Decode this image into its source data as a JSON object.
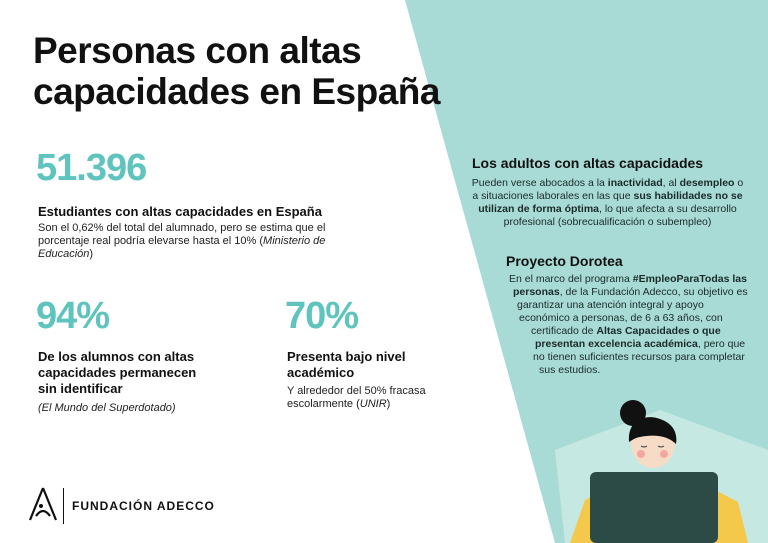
{
  "title_line1": "Personas con altas",
  "title_line2": "capacidades en España",
  "stat1": {
    "value": "51.396",
    "label": "Estudiantes con altas capacidades en España",
    "note_line1": "Son el 0,62% del total del alumnado, pero se estima que el",
    "note_line2": "porcentaje real podría elevarse hasta el 10% (",
    "note_source": "Ministerio de",
    "note_source2": "Educación",
    "note_end": ")"
  },
  "stat2": {
    "value": "94%",
    "label_line1": "De los alumnos con altas",
    "label_line2": "capacidades permanecen",
    "label_line3": "sin identificar",
    "source": "(El Mundo del Superdotado)"
  },
  "stat3": {
    "value": "70%",
    "label_line1": "Presenta bajo nivel",
    "label_line2": "académico",
    "note_line1": "Y alrededor del 50% fracasa",
    "note_line2": "escolarmente (",
    "note_source": "UNIR",
    "note_end": ")"
  },
  "adults": {
    "heading": "Los adultos con altas capacidades",
    "l1a": "Pueden verse abocados a la ",
    "l1b": "inactividad",
    "l1c": ", al ",
    "l1d": "desempleo",
    "l1e": " o",
    "l2a": "a situaciones laborales en las que ",
    "l2b": "sus habilidades no se",
    "l3a": "utilizan de forma óptima",
    "l3b": ", lo que afecta a su desarrollo",
    "l4": "profesional (sobrecualificación o subempleo)"
  },
  "dorotea": {
    "heading": "Proyecto Dorotea",
    "l1a": "En el marco del programa ",
    "l1b": "#EmpleoParaTodas las",
    "l2a": "personas",
    "l2b": ", de la Fundación Adecco, su objetivo es",
    "l3": "garantizar una atención integral y apoyo",
    "l4": "económico a personas, de 6 a 63 años, con",
    "l5a": "certificado de ",
    "l5b": "Altas Capacidades o que",
    "l6a": "presentan excelencia académica",
    "l6b": ", pero que",
    "l7": "no tienen suficientes recursos para completar",
    "l8": "sus estudios."
  },
  "logo": {
    "text": "FUNDACIÓN ADECCO"
  },
  "colors": {
    "teal_shape": "#a8dbd5",
    "teal_number": "#5fc4bd",
    "laptop": "#2c4b47",
    "skin": "#f6dcc6",
    "light_beam": "#fbe48f",
    "shirt": "#f4c84a"
  }
}
